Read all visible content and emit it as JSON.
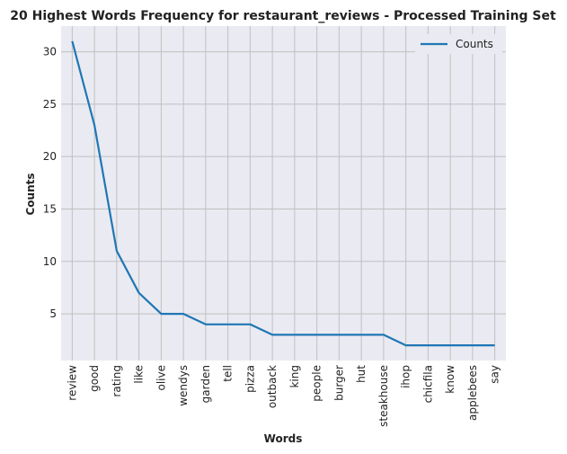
{
  "chart_data": {
    "type": "line",
    "title": "20 Highest Words Frequency for restaurant_reviews - Processed Training Set",
    "xlabel": "Words",
    "ylabel": "Counts",
    "categories": [
      "review",
      "good",
      "rating",
      "like",
      "olive",
      "wendys",
      "garden",
      "tell",
      "pizza",
      "outback",
      "king",
      "people",
      "burger",
      "hut",
      "steakhouse",
      "ihop",
      "chicfila",
      "know",
      "applebees",
      "say"
    ],
    "series": [
      {
        "name": "Counts",
        "values": [
          31,
          23,
          11,
          7,
          5,
          5,
          4,
          4,
          4,
          3,
          3,
          3,
          3,
          3,
          3,
          2,
          2,
          2,
          2,
          2
        ],
        "color": "#1f77b4"
      }
    ],
    "ylim": [
      0.55,
      32.45
    ],
    "yticks": [
      5,
      10,
      15,
      20,
      25,
      30
    ],
    "grid": true,
    "legend_position": "top-right",
    "colors": {
      "background": "#eaeaf2",
      "grid": "#c0c0c0",
      "line": "#1f77b4"
    }
  }
}
